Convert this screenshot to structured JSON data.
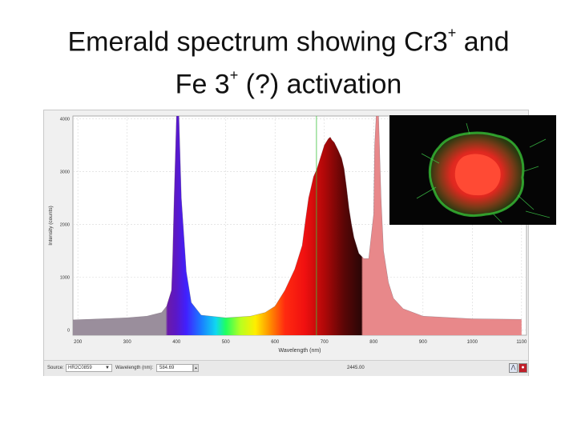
{
  "slide": {
    "title_line1_a": "Emerald spectrum showing Cr3",
    "title_line1_sup": "+",
    "title_line1_b": " and",
    "title_line2_a": "Fe 3",
    "title_line2_sup": "+",
    "title_line2_b": " (?) activation"
  },
  "statusbar": {
    "source_label": "Source:",
    "source_value": "HR2C0859",
    "wavelength_label": "Wavelength (nm):",
    "wavelength_value": "584.69",
    "readout": "2445.00"
  },
  "inset": {
    "icon": "emerald-fluorescence-micrograph"
  },
  "colors": {
    "pre_uv": "#9a8e9c",
    "post_ir": "#e8888a",
    "plot_bg": "#ffffff",
    "grid": "#d8d8d8"
  },
  "chart_data": {
    "type": "area",
    "title": "",
    "xlabel": "Wavelength (nm)",
    "ylabel": "Intensity (counts)",
    "xlim": [
      190,
      1110
    ],
    "ylim": [
      -100,
      4050
    ],
    "x_ticks": [
      200,
      300,
      400,
      500,
      600,
      700,
      800,
      900,
      1000,
      1100
    ],
    "x_tick_labels": [
      "200",
      "300",
      "400",
      "500",
      "600",
      "700",
      "800",
      "900",
      "1000",
      "1100"
    ],
    "y_ticks": [
      0,
      1000,
      2000,
      3000,
      4000
    ],
    "y_tick_labels": [
      "0",
      "1000",
      "2000",
      "3000",
      "4000"
    ],
    "grid": true,
    "cursor_x": 684,
    "series": [
      {
        "x": [
          190,
          250,
          300,
          340,
          370,
          380,
          390,
          392,
          395,
          400,
          405,
          410,
          420,
          430,
          450,
          500,
          550,
          580,
          600,
          620,
          640,
          655,
          662,
          668,
          673,
          678,
          685,
          690,
          700,
          708,
          712,
          715,
          720,
          728,
          735,
          740,
          745,
          750,
          755,
          760,
          770,
          780,
          790,
          800,
          802,
          805,
          810,
          815,
          820,
          830,
          840,
          860,
          900,
          1000,
          1100
        ],
        "y": [
          190,
          210,
          230,
          260,
          330,
          450,
          750,
          1300,
          2400,
          4050,
          4050,
          2500,
          1100,
          520,
          280,
          230,
          260,
          330,
          450,
          750,
          1150,
          1600,
          2100,
          2500,
          2700,
          2900,
          3050,
          3200,
          3500,
          3620,
          3650,
          3600,
          3550,
          3400,
          3250,
          3050,
          2700,
          2300,
          2000,
          1750,
          1450,
          1350,
          1350,
          2200,
          3500,
          4050,
          4050,
          2500,
          1500,
          900,
          600,
          400,
          260,
          210,
          200
        ]
      }
    ]
  }
}
